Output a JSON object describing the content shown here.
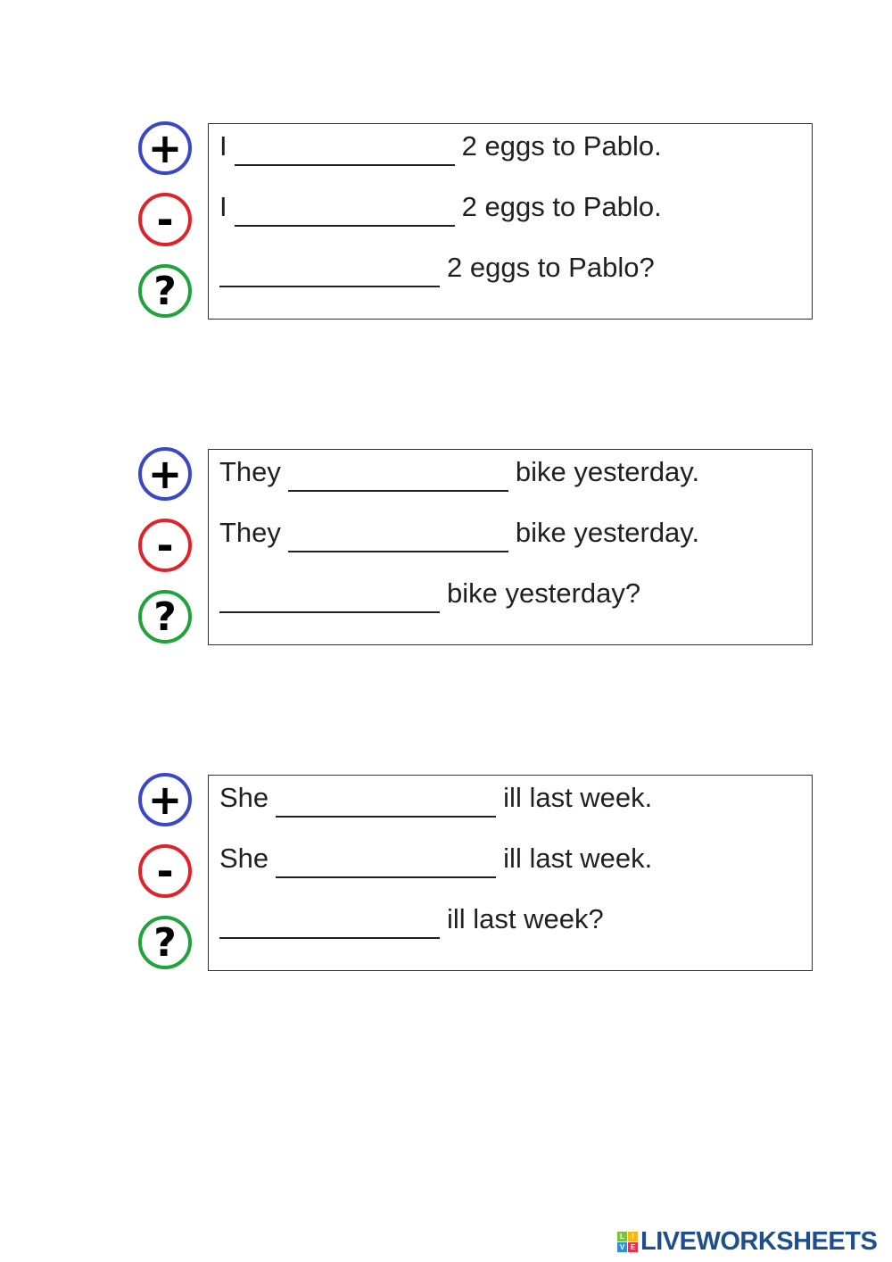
{
  "exercises": [
    {
      "affirmative": {
        "before": "I",
        "after": "2 eggs to Pablo."
      },
      "negative": {
        "before": "I",
        "after": "2 eggs to Pablo."
      },
      "question": {
        "after": "2 eggs to Pablo?"
      }
    },
    {
      "affirmative": {
        "before": "They",
        "after": "bike yesterday."
      },
      "negative": {
        "before": "They",
        "after": "bike yesterday."
      },
      "question": {
        "after": "bike yesterday?"
      }
    },
    {
      "affirmative": {
        "before": "She",
        "after": "ill last week."
      },
      "negative": {
        "before": "She",
        "after": "ill last week."
      },
      "question": {
        "after": "ill last week?"
      }
    }
  ],
  "icons": {
    "plus": {
      "symbol": "+",
      "color": "#3a48c8"
    },
    "minus": {
      "symbol": "-",
      "color": "#e0222a"
    },
    "question": {
      "symbol": "?",
      "color": "#1fa33a"
    }
  },
  "logo": {
    "text": "LIVEWORKSHEETS",
    "tiles": [
      "L",
      "I",
      "V",
      "E"
    ]
  }
}
